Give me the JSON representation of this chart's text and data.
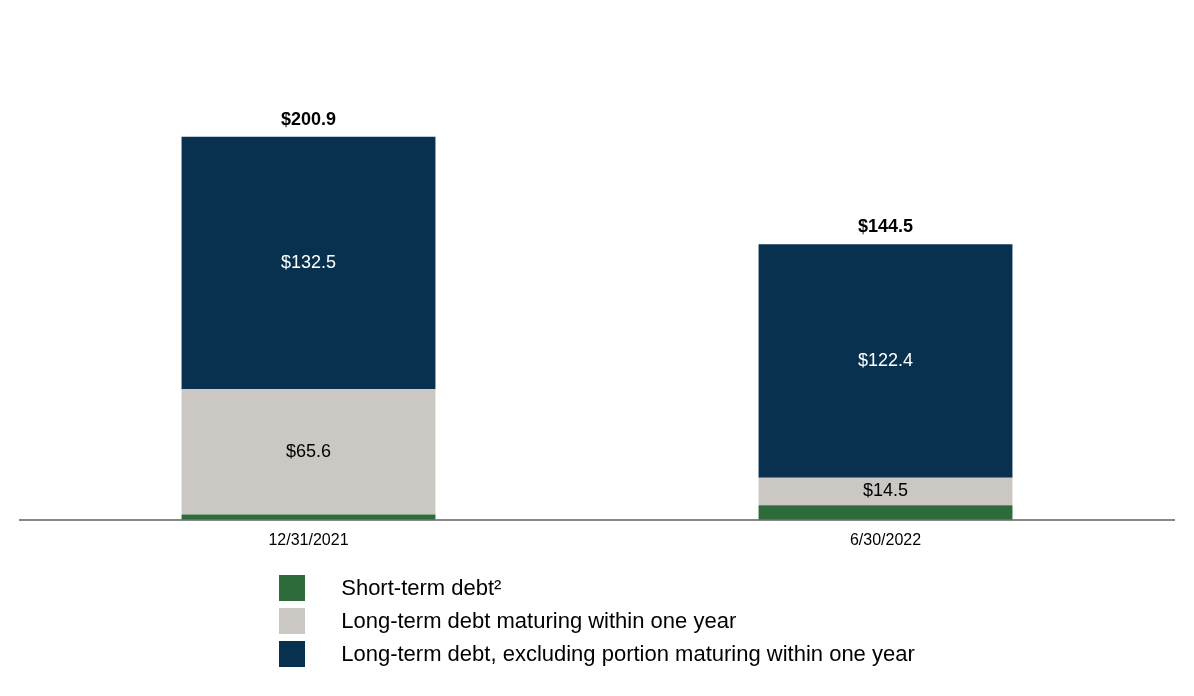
{
  "chart_data": {
    "type": "bar",
    "stacked": true,
    "categories": [
      "12/31/2021",
      "6/30/2022"
    ],
    "series": [
      {
        "name": "Short-term debt²",
        "color": "#2e6b3a",
        "values": [
          2.8,
          7.6
        ],
        "value_labels": [
          null,
          null
        ]
      },
      {
        "name": "Long-term debt maturing within one year",
        "color": "#cbc8c3",
        "values": [
          65.6,
          14.5
        ],
        "value_labels": [
          "$65.6",
          "$14.5"
        ]
      },
      {
        "name": "Long-term debt, excluding portion maturing within one year",
        "color": "#08304f",
        "values": [
          132.5,
          122.4
        ],
        "value_labels": [
          "$132.5",
          "$122.4"
        ]
      }
    ],
    "totals": [
      "$200.9",
      "$144.5"
    ],
    "legend": "bottom",
    "grid": false
  }
}
